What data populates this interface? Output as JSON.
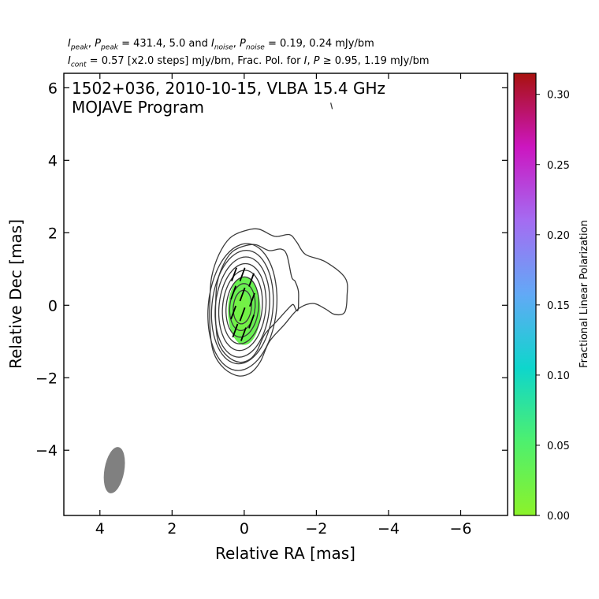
{
  "header": {
    "line1": {
      "i_peak_sym": "I",
      "i_peak_sub": "peak",
      "p_peak_sym": "P",
      "p_peak_sub": "peak",
      "peak_vals": "= 431.4, 5.0 and",
      "i_noise_sym": "I",
      "i_noise_sub": "noise",
      "p_noise_sym": "P",
      "p_noise_sub": "noise",
      "noise_vals": "= 0.19, 0.24 mJy/bm"
    },
    "line2": {
      "i_cont_sym": "I",
      "i_cont_sub": "cont",
      "cont_text": "= 0.57 [x2.0 steps] mJy/bm, Frac. Pol. for",
      "i_sym": "I",
      "p_sym": "P",
      "tail": "≥ 0.95, 1.19 mJy/bm"
    }
  },
  "chart_data": {
    "type": "contour",
    "title_lines": [
      "1502+036, 2010-10-15, VLBA 15.4 GHz",
      "MOJAVE Program"
    ],
    "xlabel": "Relative RA [mas]",
    "ylabel": "Relative Dec [mas]",
    "xlim": [
      5,
      -7.3
    ],
    "ylim": [
      -5.8,
      6.4
    ],
    "xticks": [
      4,
      2,
      0,
      -2,
      -4,
      -6
    ],
    "xtick_labels": [
      "4",
      "2",
      "0",
      "−2",
      "−4",
      "−6"
    ],
    "yticks": [
      -4,
      -2,
      0,
      2,
      4,
      6
    ],
    "ytick_labels": [
      "−4",
      "−2",
      "0",
      "2",
      "4",
      "6"
    ],
    "contour_levels_mJy": [
      0.57,
      1.14,
      2.28,
      4.56,
      9.12,
      18.24,
      36.48,
      72.96,
      145.92,
      291.84
    ],
    "core_center": [
      0.05,
      -0.05
    ],
    "jet_extension": {
      "ra": -2.9,
      "dec": 0.4
    },
    "polarized_region": {
      "center_ra": 0.0,
      "center_dec": -0.15,
      "ra_half_width": 0.45,
      "dec_half_height": 0.95,
      "frac_pol": 0.03
    },
    "evpa_ticks": [
      {
        "ra": 0.28,
        "dec": 0.85,
        "angle_deg": 20
      },
      {
        "ra": 0.05,
        "dec": 0.85,
        "angle_deg": 20
      },
      {
        "ra": -0.2,
        "dec": 0.7,
        "angle_deg": 20
      },
      {
        "ra": 0.3,
        "dec": 0.35,
        "angle_deg": 20
      },
      {
        "ra": 0.05,
        "dec": 0.3,
        "angle_deg": 20
      },
      {
        "ra": -0.22,
        "dec": 0.15,
        "angle_deg": 20
      },
      {
        "ra": 0.3,
        "dec": -0.2,
        "angle_deg": 20
      },
      {
        "ra": 0.05,
        "dec": -0.25,
        "angle_deg": 20
      },
      {
        "ra": -0.2,
        "dec": -0.45,
        "angle_deg": 20
      },
      {
        "ra": 0.25,
        "dec": -0.7,
        "angle_deg": 20
      },
      {
        "ra": 0.02,
        "dec": -0.8,
        "angle_deg": 20
      }
    ],
    "beam": {
      "ra": 3.6,
      "dec": -4.55,
      "major_mas": 1.3,
      "minor_mas": 0.55,
      "pa_deg": -10
    },
    "stray_feature": {
      "ra": -2.42,
      "dec": 5.5
    },
    "colorbar": {
      "label": "Fractional Linear Polarization",
      "range": [
        0.0,
        0.315
      ],
      "ticks": [
        0.0,
        0.05,
        0.1,
        0.15,
        0.2,
        0.25,
        0.3
      ],
      "tick_labels": [
        "0.00",
        "0.05",
        "0.10",
        "0.15",
        "0.20",
        "0.25",
        "0.30"
      ],
      "colors": [
        "#8cf22a",
        "#4ef06e",
        "#0ed6cc",
        "#62a9f6",
        "#a46cf2",
        "#cc16c0",
        "#a8120e"
      ]
    },
    "colors": {
      "contour": "#3a3a3a",
      "beam": "#808080",
      "evpa": "#000000"
    }
  }
}
